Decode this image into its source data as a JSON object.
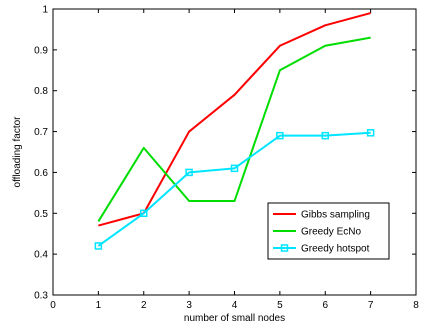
{
  "chart_data": {
    "type": "line",
    "title": "",
    "xlabel": "number of small nodes",
    "ylabel": "offloading factor",
    "xlim": [
      0,
      8
    ],
    "ylim": [
      0.3,
      1.0
    ],
    "xticks": [
      0,
      1,
      2,
      3,
      4,
      5,
      6,
      7,
      8
    ],
    "yticks": [
      0.3,
      0.4,
      0.5,
      0.6,
      0.7,
      0.8,
      0.9,
      1.0
    ],
    "xtick_labels": [
      "0",
      "1",
      "2",
      "3",
      "4",
      "5",
      "6",
      "7",
      "8"
    ],
    "ytick_labels": [
      "0.3",
      "0.4",
      "0.5",
      "0.6",
      "0.7",
      "0.8",
      "0.9",
      "1"
    ],
    "grid": false,
    "legend_position": "lower-right",
    "x": [
      1,
      2,
      3,
      4,
      5,
      6,
      7
    ],
    "series": [
      {
        "name": "Gibbs sampling",
        "values": [
          0.47,
          0.5,
          0.7,
          0.79,
          0.91,
          0.96,
          0.99
        ],
        "color": "#ff0000",
        "marker": "none"
      },
      {
        "name": "Greedy EcNo",
        "values": [
          0.48,
          0.66,
          0.53,
          0.53,
          0.85,
          0.91,
          0.93
        ],
        "color": "#00dd00",
        "marker": "none"
      },
      {
        "name": "Greedy hotspot",
        "values": [
          0.42,
          0.5,
          0.6,
          0.61,
          0.69,
          0.69,
          0.697
        ],
        "color": "#00e5ff",
        "marker": "square"
      }
    ]
  }
}
